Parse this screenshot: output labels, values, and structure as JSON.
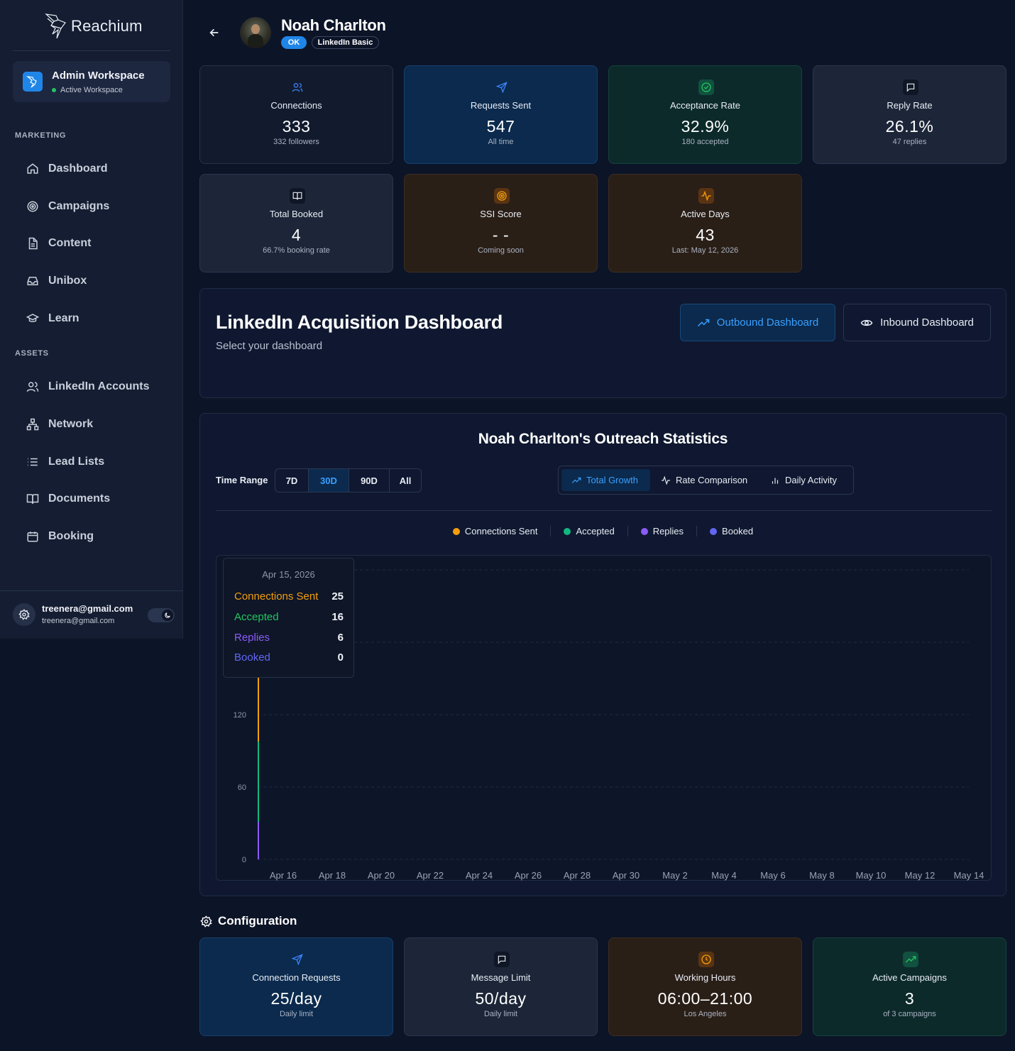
{
  "app": {
    "name": "Reachium"
  },
  "workspace": {
    "title": "Admin Workspace",
    "status": "Active Workspace"
  },
  "sidebar": {
    "sections": [
      {
        "label": "MARKETING"
      },
      {
        "label": "ASSETS"
      }
    ],
    "items": [
      {
        "label": "Dashboard",
        "icon": "home-icon"
      },
      {
        "label": "Campaigns",
        "icon": "target-icon"
      },
      {
        "label": "Content",
        "icon": "document-icon"
      },
      {
        "label": "Unibox",
        "icon": "inbox-icon"
      },
      {
        "label": "Learn",
        "icon": "graduation-cap-icon"
      },
      {
        "label": "LinkedIn Accounts",
        "icon": "users-icon"
      },
      {
        "label": "Network",
        "icon": "network-icon"
      },
      {
        "label": "Lead Lists",
        "icon": "list-icon"
      },
      {
        "label": "Documents",
        "icon": "book-icon"
      },
      {
        "label": "Booking",
        "icon": "calendar-icon"
      }
    ],
    "user": {
      "email": "treenera@gmail.com",
      "sub_email": "treenera@gmail.com"
    }
  },
  "profile": {
    "name": "Noah Charlton",
    "status_badge": "OK",
    "plan_badge": "LinkedIn Basic"
  },
  "stats_cards": [
    {
      "label": "Connections",
      "value": "333",
      "sub": "332 followers",
      "icon": "users-icon",
      "accent": "#3b82f6"
    },
    {
      "label": "Requests Sent",
      "value": "547",
      "sub": "All time",
      "icon": "send-icon",
      "accent": "#3b82f6"
    },
    {
      "label": "Acceptance Rate",
      "value": "32.9%",
      "sub": "180 accepted",
      "icon": "check-circle-icon",
      "accent": "#22c55e"
    },
    {
      "label": "Reply Rate",
      "value": "26.1%",
      "sub": "47 replies",
      "icon": "message-icon",
      "accent": "#e5e7eb"
    },
    {
      "label": "Total Booked",
      "value": "4",
      "sub": "66.7% booking rate",
      "icon": "book-icon",
      "accent": "#e5e7eb"
    },
    {
      "label": "SSI Score",
      "value": "- -",
      "sub": "Coming soon",
      "icon": "target-icon",
      "accent": "#f59e0b"
    },
    {
      "label": "Active Days",
      "value": "43",
      "sub": "Last: May 12, 2026",
      "icon": "activity-icon",
      "accent": "#f59e0b"
    }
  ],
  "dashboard_selector": {
    "title": "LinkedIn Acquisition Dashboard",
    "subtitle": "Select your dashboard",
    "outbound_label": "Outbound Dashboard",
    "inbound_label": "Inbound Dashboard"
  },
  "outreach": {
    "title": "Noah Charlton's Outreach Statistics",
    "time_range_label": "Time Range",
    "ranges": [
      "7D",
      "30D",
      "90D",
      "All"
    ],
    "selected_range": "30D",
    "views": [
      "Total Growth",
      "Rate Comparison",
      "Daily Activity"
    ],
    "selected_view": "Total Growth"
  },
  "tooltip": {
    "date": "Apr 15, 2026",
    "rows": [
      {
        "label": "Connections Sent",
        "value": "25",
        "color": "#f59e0b"
      },
      {
        "label": "Accepted",
        "value": "16",
        "color": "#22c55e"
      },
      {
        "label": "Replies",
        "value": "6",
        "color": "#8b5cf6"
      },
      {
        "label": "Booked",
        "value": "0",
        "color": "#6366f1"
      }
    ]
  },
  "chart_data": {
    "type": "line",
    "x": [
      "Apr 15"
    ],
    "x_tick_labels": [
      "Apr 16",
      "Apr 18",
      "Apr 20",
      "Apr 22",
      "Apr 24",
      "Apr 26",
      "Apr 28",
      "Apr 30",
      "May 2",
      "May 4",
      "May 6",
      "May 8",
      "May 10",
      "May 12",
      "May 14"
    ],
    "y_tick_labels": [
      "0",
      "60",
      "120"
    ],
    "ylim": [
      0,
      240
    ],
    "grid": true,
    "legend_position": "top",
    "series": [
      {
        "name": "Connections Sent",
        "color": "#f59e0b",
        "values": [
          25
        ]
      },
      {
        "name": "Accepted",
        "color": "#22c55e",
        "values": [
          16
        ]
      },
      {
        "name": "Replies",
        "color": "#8b5cf6",
        "values": [
          6
        ]
      },
      {
        "name": "Booked",
        "color": "#6366f1",
        "values": [
          0
        ]
      }
    ]
  },
  "configuration": {
    "title": "Configuration",
    "cards": [
      {
        "label": "Connection Requests",
        "value": "25/day",
        "sub": "Daily limit",
        "icon": "send-icon",
        "accent": "#3b82f6"
      },
      {
        "label": "Message Limit",
        "value": "50/day",
        "sub": "Daily limit",
        "icon": "message-icon",
        "accent": "#e5e7eb"
      },
      {
        "label": "Working Hours",
        "value": "06:00–21:00",
        "sub": "Los Angeles",
        "icon": "clock-icon",
        "accent": "#f59e0b"
      },
      {
        "label": "Active Campaigns",
        "value": "3",
        "sub": "of 3 campaigns",
        "icon": "trending-up-icon",
        "accent": "#22c55e"
      }
    ]
  }
}
